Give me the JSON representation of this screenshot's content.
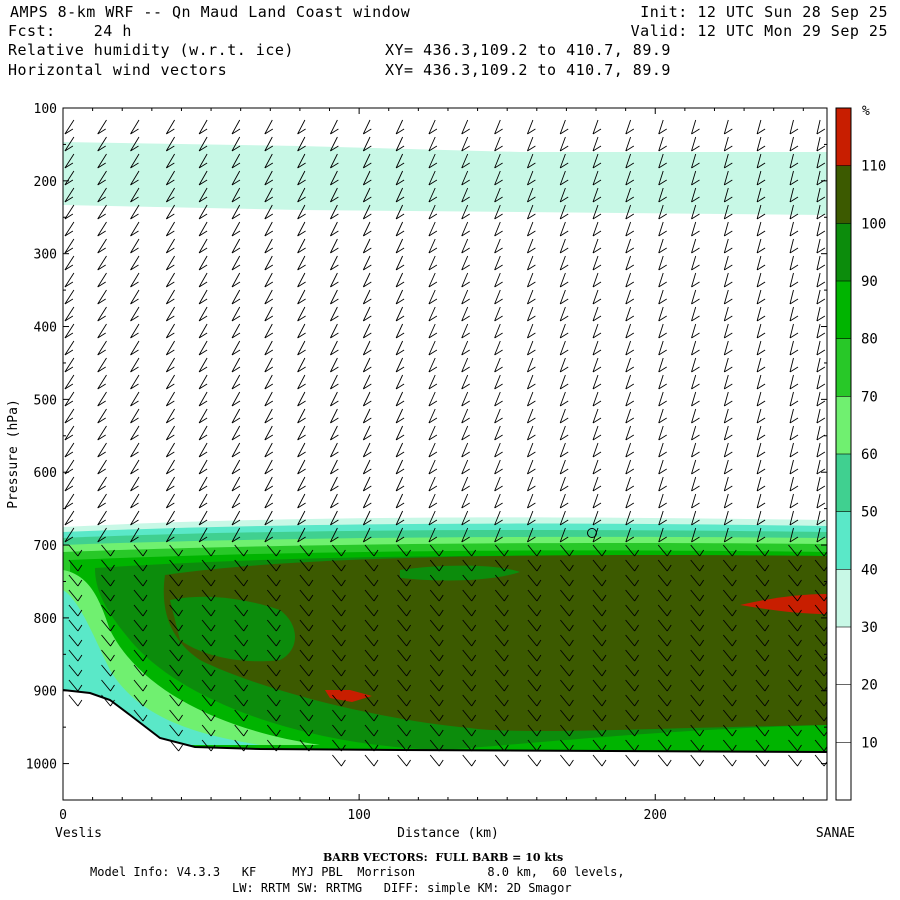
{
  "header": {
    "title": "AMPS 8-km WRF -- Qn Maud Land Coast window",
    "init": "Init: 12 UTC Sun 28 Sep 25",
    "fcst": "Fcst:    24 h",
    "valid": "Valid: 12 UTC Mon 29 Sep 25",
    "field1": "Relative humidity (w.r.t. ice)",
    "xy1": "XY= 436.3,109.2 to 410.7, 89.9",
    "field2": "Horizontal wind vectors",
    "xy2": "XY= 436.3,109.2 to 410.7, 89.9"
  },
  "footer": {
    "barb_note": "BARB VECTORS:  FULL BARB = 10 kts",
    "model_info_1": "Model Info: V4.3.3   KF     MYJ PBL  Morrison          8.0 km,  60 levels,",
    "model_info_2": "LW: RRTM SW: RRTMG   DIFF: simple KM: 2D Smagor"
  },
  "chart_data": {
    "type": "heatmap",
    "title": "Relative humidity (w.r.t. ice)",
    "xlabel": "Distance (km)",
    "ylabel": "Pressure (hPa)",
    "x_range": [
      0,
      258
    ],
    "y_range": [
      100,
      1050
    ],
    "x_ticks": [
      0,
      100,
      200
    ],
    "y_ticks": [
      100,
      200,
      300,
      400,
      500,
      600,
      700,
      800,
      900,
      1000
    ],
    "x_endpoints": {
      "left": "Veslis",
      "right": "SANAE"
    },
    "colorbar": {
      "unit": "%",
      "labels": [
        10,
        20,
        30,
        40,
        50,
        60,
        70,
        80,
        90,
        100,
        110
      ],
      "bins": [
        {
          "from": 0,
          "to": 30,
          "color": "#ffffff"
        },
        {
          "from": 30,
          "to": 40,
          "color": "#c8f8e6"
        },
        {
          "from": 40,
          "to": 50,
          "color": "#5ae8c8"
        },
        {
          "from": 50,
          "to": 60,
          "color": "#40d090"
        },
        {
          "from": 60,
          "to": 70,
          "color": "#70f070"
        },
        {
          "from": 70,
          "to": 80,
          "color": "#28c828"
        },
        {
          "from": 80,
          "to": 90,
          "color": "#00b400"
        },
        {
          "from": 90,
          "to": 100,
          "color": "#0c8c0c"
        },
        {
          "from": 100,
          "to": 110,
          "color": "#3c5a00"
        },
        {
          "from": 110,
          "to": 120,
          "color": "#c81e00"
        }
      ]
    },
    "wind_barb_columns_km": [
      3,
      14,
      25,
      37,
      48,
      59,
      70,
      81,
      92,
      103,
      114,
      125,
      136,
      147,
      158,
      169,
      180,
      191,
      202,
      213,
      224,
      235,
      246,
      255
    ],
    "terrain_surface_hPa": [
      [
        0,
        898
      ],
      [
        10,
        905
      ],
      [
        20,
        925
      ],
      [
        30,
        955
      ],
      [
        45,
        975
      ],
      [
        70,
        980
      ],
      [
        100,
        982
      ],
      [
        150,
        982
      ],
      [
        200,
        982
      ],
      [
        258,
        983
      ]
    ]
  }
}
